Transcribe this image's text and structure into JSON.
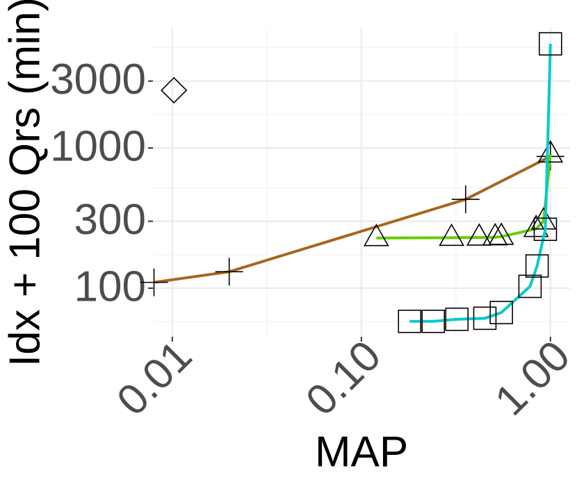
{
  "chart_data": {
    "type": "line",
    "x_label": "MAP",
    "y_label": "Idx + 100 Qrs (min)",
    "xlog": true,
    "ylog": true,
    "grid": true,
    "xlim": [
      0.0079,
      1.27
    ],
    "ylim": [
      45,
      7200
    ],
    "xticks": [
      0.01,
      {
        "value": 0.1,
        "label": "0.10"
      },
      {
        "value": 1,
        "label": "1.00"
      }
    ],
    "yticks": [
      100,
      300,
      1000,
      3000
    ],
    "series": [
      {
        "color": "#a8651e",
        "marker": "plus",
        "x": [
          0.008,
          0.02,
          0.356,
          1.0
        ],
        "values": [
          110,
          131,
          430,
          870
        ]
      },
      {
        "color": "#66cc00",
        "marker": "triangle",
        "x": [
          0.12,
          0.3,
          0.42,
          0.51,
          0.55,
          0.84,
          0.92,
          1.0
        ],
        "values": [
          228,
          229,
          230,
          231,
          233,
          265,
          300,
          900
        ]
      },
      {
        "color": "#00cccc",
        "marker": "square",
        "x": [
          0.18,
          0.24,
          0.32,
          0.45,
          0.55,
          0.78,
          0.85,
          0.94,
          1.0
        ],
        "values": [
          58,
          58,
          60,
          61,
          67,
          103,
          144,
          263,
          5530
        ]
      },
      {
        "marker": "diamond",
        "x": [
          0.0102
        ],
        "values": [
          2580
        ]
      }
    ]
  }
}
